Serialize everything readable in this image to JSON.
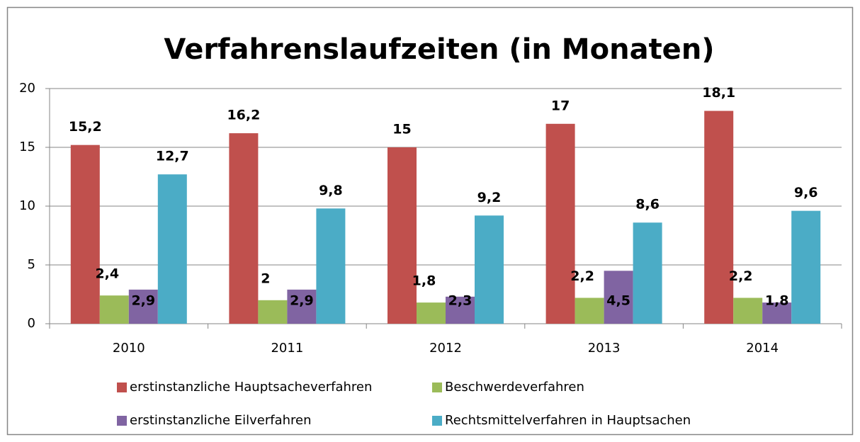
{
  "chart_data": {
    "type": "bar",
    "title": "Verfahrenslaufzeiten (in Monaten)",
    "categories": [
      "2010",
      "2011",
      "2012",
      "2013",
      "2014"
    ],
    "series": [
      {
        "name": "erstinstanzliche Hauptsacheverfahren",
        "color": "#c0504d",
        "values": [
          15.2,
          16.2,
          15,
          17,
          18.1
        ],
        "value_labels": [
          "15,2",
          "16,2",
          "15",
          "17",
          "18,1"
        ]
      },
      {
        "name": "Beschwerdeverfahren",
        "color": "#9bbb59",
        "values": [
          2.4,
          2,
          1.8,
          2.2,
          2.2
        ],
        "value_labels": [
          "2,4",
          "2",
          "1,8",
          "2,2",
          "2,2"
        ]
      },
      {
        "name": "erstinstanzliche Eilverfahren",
        "color": "#8064a2",
        "values": [
          2.9,
          2.9,
          2.3,
          4.5,
          1.8
        ],
        "value_labels": [
          "2,9",
          "2,9",
          "2,3",
          "4,5",
          "1,8"
        ]
      },
      {
        "name": "Rechtsmittelverfahren in Hauptsachen",
        "color": "#4bacc6",
        "values": [
          12.7,
          9.8,
          9.2,
          8.6,
          9.6
        ],
        "value_labels": [
          "12,7",
          "9,8",
          "9,2",
          "8,6",
          "9,6"
        ]
      }
    ],
    "ylim": [
      0,
      20
    ],
    "yticks": [
      0,
      5,
      10,
      15,
      20
    ],
    "grid": true,
    "legend": "bottom"
  }
}
